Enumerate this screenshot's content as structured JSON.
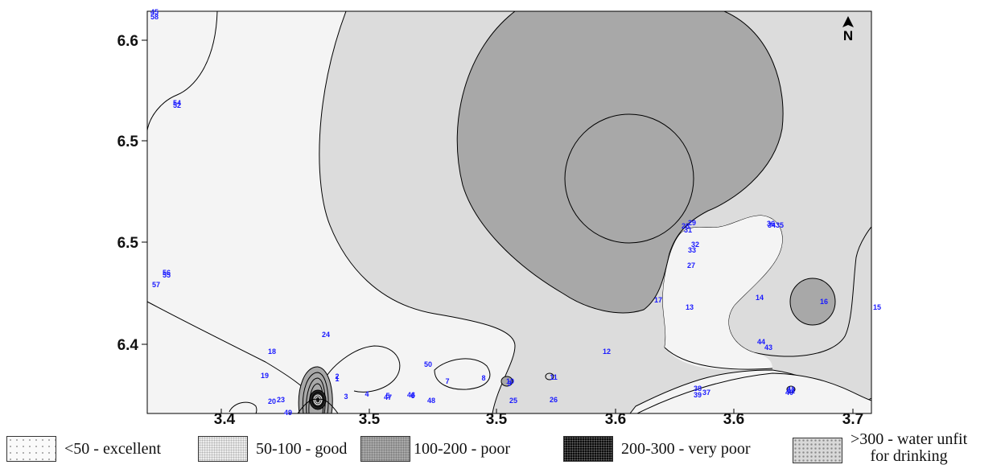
{
  "map": {
    "y_ticks": [
      "6.6",
      "6.5",
      "6.5",
      "6.4"
    ],
    "x_ticks": [
      "3.4",
      "3.5",
      "3.5",
      "3.6",
      "3.6",
      "3.7"
    ],
    "north_arrow": "N"
  },
  "wells": [
    {
      "id": "45"
    },
    {
      "id": "58"
    },
    {
      "id": "54"
    },
    {
      "id": "52"
    },
    {
      "id": "56"
    },
    {
      "id": "55"
    },
    {
      "id": "57"
    },
    {
      "id": "24"
    },
    {
      "id": "18"
    },
    {
      "id": "19"
    },
    {
      "id": "20"
    },
    {
      "id": "23"
    },
    {
      "id": "49"
    },
    {
      "id": "2"
    },
    {
      "id": "1"
    },
    {
      "id": "3"
    },
    {
      "id": "4"
    },
    {
      "id": "5"
    },
    {
      "id": "47"
    },
    {
      "id": "46"
    },
    {
      "id": "6"
    },
    {
      "id": "48"
    },
    {
      "id": "50"
    },
    {
      "id": "7"
    },
    {
      "id": "8"
    },
    {
      "id": "10"
    },
    {
      "id": "9"
    },
    {
      "id": "11"
    },
    {
      "id": "25"
    },
    {
      "id": "26"
    },
    {
      "id": "12"
    },
    {
      "id": "17"
    },
    {
      "id": "13"
    },
    {
      "id": "28"
    },
    {
      "id": "29"
    },
    {
      "id": "31"
    },
    {
      "id": "32"
    },
    {
      "id": "33"
    },
    {
      "id": "27"
    },
    {
      "id": "36"
    },
    {
      "id": "34"
    },
    {
      "id": "35"
    },
    {
      "id": "14"
    },
    {
      "id": "16"
    },
    {
      "id": "15"
    },
    {
      "id": "44"
    },
    {
      "id": "43"
    },
    {
      "id": "38"
    },
    {
      "id": "39"
    },
    {
      "id": "37"
    },
    {
      "id": "41"
    },
    {
      "id": "42"
    },
    {
      "id": "40"
    }
  ],
  "legend": {
    "excellent": "<50 - excellent",
    "good": "50-100 - good",
    "poor": "100-200 - poor",
    "very_poor": "200-300 - very poor",
    "unfit_line1": ">300 - water unfit",
    "unfit_line2": "for drinking"
  }
}
